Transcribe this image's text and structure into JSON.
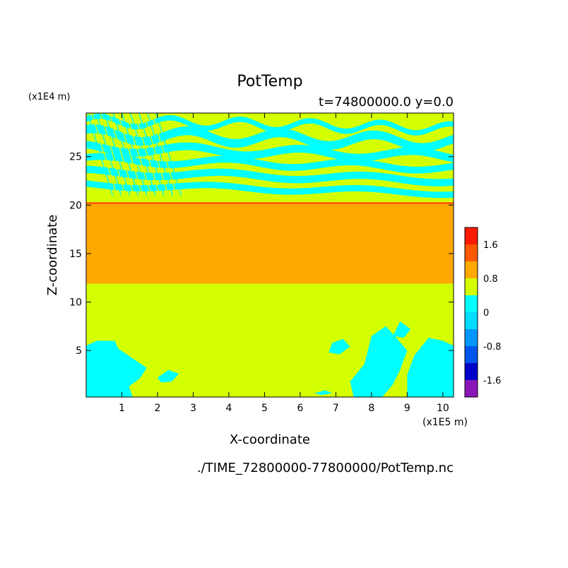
{
  "chart_data": {
    "type": "heatmap",
    "title": "PotTemp",
    "subtitle": "t=74800000.0 y=0.0",
    "xlabel": "X-coordinate",
    "ylabel": "Z-coordinate",
    "x_unit": "(x1E5 m)",
    "y_unit": "(x1E4 m)",
    "source_file": "./TIME_72800000-77800000/PotTemp.nc",
    "xlim": [
      0,
      10.3
    ],
    "ylim": [
      0.2,
      29.5
    ],
    "x_ticks": [
      1,
      2,
      3,
      4,
      5,
      6,
      7,
      8,
      9,
      10
    ],
    "y_ticks": [
      5,
      10,
      15,
      20,
      25
    ],
    "colorbar": {
      "levels": [
        -2.0,
        -1.6,
        -1.2,
        -0.8,
        -0.4,
        0,
        0.4,
        0.8,
        1.2,
        1.6,
        2.0
      ],
      "colors": [
        "#8b16b8",
        "#0000c8",
        "#0055ee",
        "#0096ff",
        "#00dcff",
        "#00ffff",
        "#d4ff00",
        "#ffa800",
        "#ff5a00",
        "#ff1a00",
        "#ffaaaa"
      ],
      "tick_labels": [
        "1.6",
        "0.8",
        "0",
        "-0.8",
        "-1.6"
      ],
      "tick_values": [
        1.6,
        0.8,
        0,
        -0.8,
        -1.6
      ]
    },
    "layers": [
      {
        "z_range": [
          0.2,
          11.9
        ],
        "value": 0.2
      },
      {
        "z_range": [
          11.9,
          20.1
        ],
        "value": 1.0
      },
      {
        "z_range": [
          20.1,
          20.3
        ],
        "value": 1.4
      },
      {
        "z_range": [
          20.3,
          29.5
        ],
        "value": 0.2,
        "pattern": "alternating bands of 0.2 and -0.2"
      }
    ]
  },
  "colors": {
    "cyan": "#00ffff",
    "yellow_green": "#d4ff00",
    "orange": "#ffa800",
    "red_orange": "#ff5a00"
  }
}
